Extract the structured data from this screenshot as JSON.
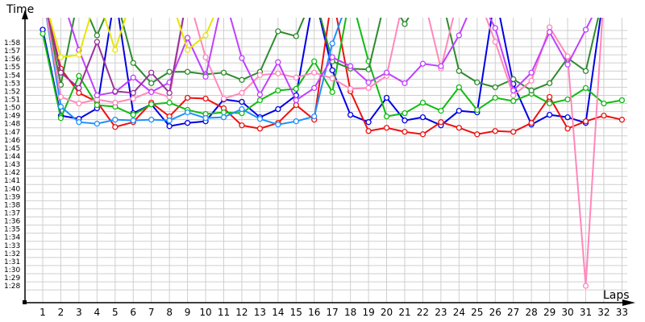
{
  "chart_data": {
    "type": "line",
    "title": "",
    "xlabel": "Laps",
    "ylabel": "Time",
    "x": [
      1,
      2,
      3,
      4,
      5,
      6,
      7,
      8,
      9,
      10,
      11,
      12,
      13,
      14,
      15,
      16,
      17,
      18,
      19,
      20,
      21,
      22,
      23,
      24,
      25,
      26,
      27,
      28,
      29,
      30,
      31,
      32,
      33
    ],
    "y_ticks": [
      "1:28",
      "1:29",
      "1:30",
      "1:31",
      "1:32",
      "1:33",
      "1:34",
      "1:35",
      "1:36",
      "1:37",
      "1:38",
      "1:39",
      "1:40",
      "1:41",
      "1:42",
      "1:43",
      "1:44",
      "1:45",
      "1:46",
      "1:47",
      "1:48",
      "1:49",
      "1:50",
      "1:51",
      "1:52",
      "1:53",
      "1:54",
      "1:55",
      "1:56",
      "1:57",
      "1:58"
    ],
    "ylim_seconds": [
      86,
      120
    ],
    "value_unit": "seconds (lap time)",
    "grid": true,
    "legend": "none",
    "series": [
      {
        "name": "blue",
        "color": "#0000e6",
        "values": [
          119.6,
          109.0,
          108.6,
          109.9,
          null,
          109.3,
          110.4,
          107.7,
          108.1,
          108.3,
          111.0,
          110.7,
          108.8,
          109.8,
          111.5,
          null,
          114.6,
          109.1,
          108.2,
          111.2,
          108.4,
          108.8,
          107.8,
          109.6,
          109.4,
          null,
          112.9,
          107.9,
          109.1,
          108.8,
          108.1,
          null,
          null
        ]
      },
      {
        "name": "red",
        "color": "#ee1111",
        "values": [
          null,
          114.8,
          111.8,
          110.7,
          107.6,
          108.2,
          110.6,
          108.9,
          111.2,
          111.1,
          109.9,
          107.8,
          107.4,
          108.1,
          110.3,
          108.5,
          null,
          112.0,
          107.1,
          107.5,
          107.0,
          106.7,
          108.2,
          107.5,
          106.7,
          107.1,
          107.0,
          108.1,
          111.3,
          107.4,
          108.3,
          109.0,
          108.5
        ]
      },
      {
        "name": "green",
        "color": "#11bb11",
        "values": [
          119.1,
          108.7,
          113.9,
          110.3,
          110.1,
          109.1,
          110.4,
          110.6,
          109.7,
          109.2,
          109.4,
          109.3,
          110.9,
          112.1,
          112.3,
          115.7,
          111.9,
          null,
          115.7,
          108.9,
          109.3,
          110.6,
          109.6,
          112.5,
          109.7,
          111.2,
          110.8,
          111.7,
          110.5,
          111.0,
          112.4,
          110.5,
          110.9
        ]
      },
      {
        "name": "dark-green",
        "color": "#2e8b2e",
        "values": [
          null,
          112.8,
          null,
          118.9,
          null,
          115.5,
          113.0,
          114.4,
          114.4,
          114.1,
          114.3,
          113.4,
          114.4,
          119.4,
          118.8,
          null,
          115.7,
          114.8,
          114.7,
          null,
          120.3,
          null,
          null,
          114.5,
          113.1,
          112.5,
          113.5,
          112.1,
          113.0,
          116.1,
          114.5,
          null,
          null
        ]
      },
      {
        "name": "light-blue",
        "color": "#1e90ff",
        "values": [
          null,
          110.1,
          108.2,
          108.0,
          108.5,
          108.4,
          108.5,
          108.4,
          109.4,
          108.7,
          108.8,
          109.8,
          108.6,
          107.9,
          108.3,
          108.9,
          117.9,
          null,
          null,
          null,
          null,
          null,
          null,
          null,
          null,
          null,
          null,
          null,
          null,
          null,
          null,
          null,
          null
        ]
      },
      {
        "name": "pink",
        "color": "#ff88bb",
        "values": [
          null,
          111.3,
          110.5,
          111.0,
          110.6,
          111.1,
          112.0,
          111.3,
          null,
          116.2,
          111.1,
          111.8,
          114.0,
          114.2,
          113.7,
          114.3,
          113.6,
          112.3,
          112.4,
          113.9,
          null,
          null,
          114.8,
          null,
          null,
          118.1,
          111.5,
          113.3,
          119.9,
          116.3,
          88.0,
          null,
          null
        ]
      },
      {
        "name": "purple",
        "color": "#c040ff",
        "values": [
          null,
          null,
          117.1,
          111.5,
          111.9,
          113.7,
          111.9,
          113.1,
          118.6,
          113.8,
          null,
          116.1,
          111.6,
          115.6,
          110.9,
          112.4,
          116.2,
          115.1,
          113.1,
          114.3,
          113.0,
          115.4,
          115.1,
          118.9,
          null,
          119.8,
          112.1,
          114.3,
          119.3,
          115.3,
          119.6,
          null,
          null
        ]
      },
      {
        "name": "dark-purple",
        "color": "#993399",
        "values": [
          null,
          114.3,
          112.4,
          118.1,
          112.0,
          111.8,
          114.3,
          111.8,
          null,
          null,
          null,
          null,
          null,
          null,
          null,
          null,
          null,
          null,
          null,
          null,
          null,
          null,
          null,
          null,
          null,
          null,
          null,
          null,
          null,
          null,
          null,
          null,
          null
        ]
      },
      {
        "name": "yellow",
        "color": "#e6e600",
        "values": [
          null,
          116.2,
          116.5,
          null,
          117.1,
          null,
          null,
          null,
          117.1,
          118.9,
          null,
          null,
          null,
          null,
          null,
          null,
          null,
          null,
          null,
          null,
          null,
          null,
          null,
          null,
          null,
          null,
          null,
          null,
          null,
          null,
          null,
          null,
          null
        ]
      }
    ]
  },
  "axes": {
    "y_title": "Time",
    "x_title": "Laps"
  }
}
